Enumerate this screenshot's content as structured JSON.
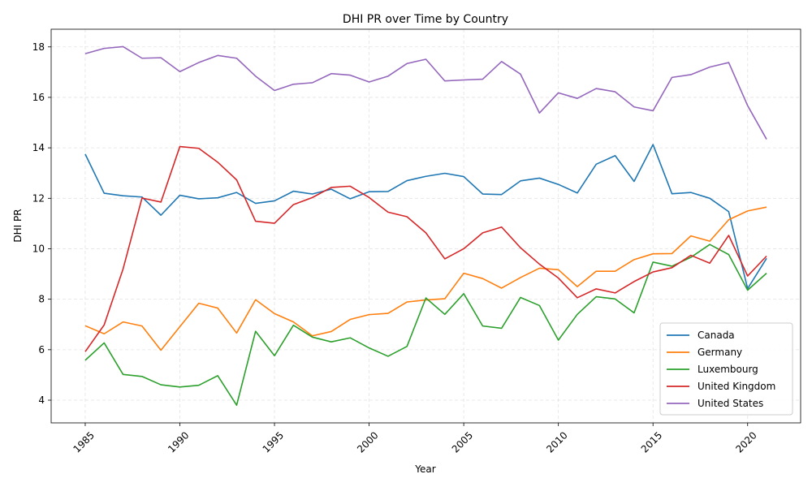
{
  "chart_data": {
    "type": "line",
    "title": "DHI PR over Time by Country",
    "xlabel": "Year",
    "ylabel": "DHI PR",
    "xlim": [
      1983.2,
      2022.8
    ],
    "ylim": [
      3.1,
      18.7
    ],
    "xticks": [
      1985,
      1990,
      1995,
      2000,
      2005,
      2010,
      2015,
      2020
    ],
    "yticks": [
      4,
      6,
      8,
      10,
      12,
      14,
      16,
      18
    ],
    "grid": true,
    "legend_position": "bottom-right",
    "x": [
      1985,
      1986,
      1987,
      1988,
      1989,
      1990,
      1991,
      1992,
      1993,
      1994,
      1995,
      1996,
      1997,
      1998,
      1999,
      2000,
      2001,
      2002,
      2003,
      2004,
      2005,
      2006,
      2007,
      2008,
      2009,
      2010,
      2011,
      2012,
      2013,
      2014,
      2015,
      2016,
      2017,
      2018,
      2019,
      2020,
      2021
    ],
    "series": [
      {
        "name": "Canada",
        "color": "#1f77b4",
        "values": [
          13.75,
          12.2,
          12.1,
          12.05,
          11.33,
          12.12,
          11.98,
          12.02,
          12.23,
          11.8,
          11.9,
          12.28,
          12.17,
          12.36,
          11.98,
          12.26,
          12.27,
          12.7,
          12.87,
          12.99,
          12.86,
          12.17,
          12.15,
          12.69,
          12.8,
          12.55,
          12.21,
          13.35,
          13.69,
          12.67,
          14.13,
          12.18,
          12.23,
          12.0,
          11.47,
          8.42,
          9.62
        ]
      },
      {
        "name": "Germany",
        "color": "#ff7f0e",
        "values": [
          6.95,
          6.63,
          7.1,
          6.94,
          5.98,
          6.91,
          7.84,
          7.65,
          6.66,
          7.98,
          7.43,
          7.1,
          6.55,
          6.72,
          7.2,
          7.39,
          7.44,
          7.89,
          7.97,
          8.02,
          9.03,
          8.82,
          8.44,
          8.86,
          9.23,
          9.17,
          8.5,
          9.11,
          9.11,
          9.57,
          9.8,
          9.81,
          10.51,
          10.3,
          11.15,
          11.5,
          11.65
        ]
      },
      {
        "name": "Luxembourg",
        "color": "#2ca02c",
        "values": [
          5.58,
          6.27,
          5.02,
          4.94,
          4.61,
          4.52,
          4.59,
          4.97,
          3.8,
          6.73,
          5.76,
          6.97,
          6.5,
          6.31,
          6.47,
          6.07,
          5.74,
          6.13,
          8.05,
          7.4,
          8.22,
          6.94,
          6.85,
          8.07,
          7.75,
          6.38,
          7.4,
          8.1,
          8.01,
          7.46,
          9.47,
          9.31,
          9.66,
          10.17,
          9.77,
          8.36,
          9.03
        ]
      },
      {
        "name": "United Kingdom",
        "color": "#d62728",
        "values": [
          5.92,
          6.98,
          9.2,
          12.01,
          11.85,
          14.05,
          13.98,
          13.43,
          12.73,
          11.09,
          11.01,
          11.75,
          12.03,
          12.43,
          12.48,
          12.03,
          11.45,
          11.27,
          10.63,
          9.6,
          10.0,
          10.63,
          10.86,
          10.04,
          9.39,
          8.84,
          8.06,
          8.41,
          8.25,
          8.7,
          9.08,
          9.25,
          9.74,
          9.43,
          10.53,
          8.92,
          9.71
        ]
      },
      {
        "name": "United States",
        "color": "#9467bd",
        "values": [
          17.73,
          17.94,
          18.01,
          17.55,
          17.57,
          17.02,
          17.38,
          17.66,
          17.55,
          16.84,
          16.27,
          16.52,
          16.58,
          16.94,
          16.88,
          16.61,
          16.84,
          17.34,
          17.51,
          16.65,
          16.69,
          16.72,
          17.42,
          16.92,
          15.38,
          16.18,
          15.96,
          16.35,
          16.22,
          15.62,
          15.47,
          16.79,
          16.9,
          17.2,
          17.38,
          15.67,
          14.34
        ]
      }
    ]
  }
}
